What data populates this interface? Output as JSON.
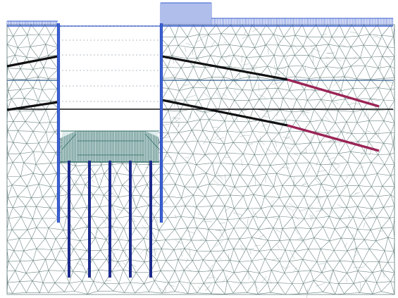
{
  "colors": {
    "background": "#ffffff",
    "mesh": "#6e8484",
    "wall": "#2a4fc4",
    "pile": "#1c2a8c",
    "load": "#3a5ed0",
    "anchor_free": "#111111",
    "anchor_grout": "#9a2456",
    "groundwater": "#2f5a8a",
    "excavation_load": "#2f6b66",
    "surface": "#3a5ed0"
  },
  "legend": []
}
